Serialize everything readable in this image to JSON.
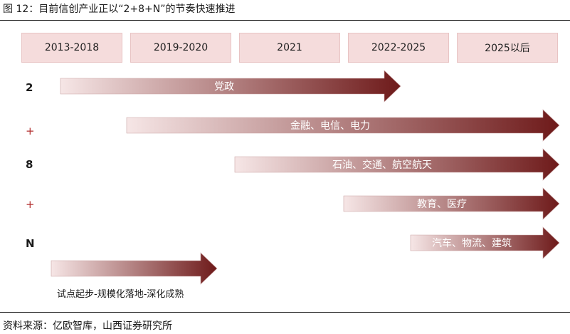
{
  "figure_title": "图 12：目前信创产业正以“2+8+N”的节奏快速推进",
  "periods": [
    "2013-2018",
    "2019-2020",
    "2021",
    "2022-2025",
    "2025以后"
  ],
  "row_labels": [
    "2",
    "+",
    "8",
    "+",
    "N"
  ],
  "arrows": {
    "party_gov": "党政",
    "finance": "金融、电信、电力",
    "petro": "石油、交通、航空航天",
    "edu": "教育、医疗",
    "auto": "汽车、物流、建筑"
  },
  "caption": "试点起步-规模化落地-深化成熟",
  "source": "资料来源：亿欧智库，山西证券研究所",
  "colors": {
    "arrow_start": "#f6e6e6",
    "arrow_end": "#6e1a1a",
    "header_bg": "#f5dcdc",
    "plus": "#b33030"
  }
}
